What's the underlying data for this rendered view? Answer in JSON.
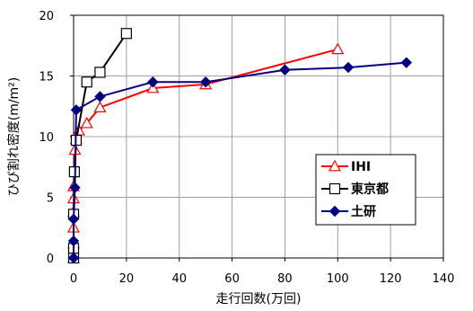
{
  "chart_data": {
    "type": "scatter",
    "xlabel": "走行回数(万回)",
    "ylabel": "ひび割れ密度(m/m²)",
    "xlim": [
      0,
      140
    ],
    "ylim": [
      0,
      20
    ],
    "xticks": [
      "0",
      "20",
      "40",
      "60",
      "80",
      "100",
      "120",
      "140"
    ],
    "yticks": [
      "0",
      "5",
      "10",
      "15",
      "20"
    ],
    "grid": true,
    "legend_position": "bottom-right",
    "series": [
      {
        "name": "IHI",
        "color": "#ff0000",
        "marker": "triangle-open",
        "x": [
          0,
          0,
          0,
          0,
          0,
          0,
          0.5,
          1,
          2,
          5,
          10,
          30,
          50,
          100
        ],
        "y": [
          0,
          1.2,
          2.5,
          3.8,
          4.9,
          5.9,
          8.9,
          9.8,
          10.5,
          11.1,
          12.4,
          14.0,
          14.3,
          17.2
        ]
      },
      {
        "name": "東京都",
        "color": "#000000",
        "marker": "square-open",
        "x": [
          0,
          0,
          0,
          0.3,
          1,
          5,
          10,
          20
        ],
        "y": [
          0,
          0.8,
          3.6,
          7.1,
          9.7,
          14.5,
          15.3,
          18.5
        ]
      },
      {
        "name": "土研",
        "color": "#000080",
        "marker": "diamond-filled",
        "x": [
          0,
          0,
          0,
          0.5,
          1,
          10,
          30,
          50,
          80,
          104,
          126
        ],
        "y": [
          0,
          1.4,
          3.2,
          5.8,
          12.2,
          13.3,
          14.5,
          14.5,
          15.5,
          15.7,
          16.1
        ]
      }
    ]
  }
}
